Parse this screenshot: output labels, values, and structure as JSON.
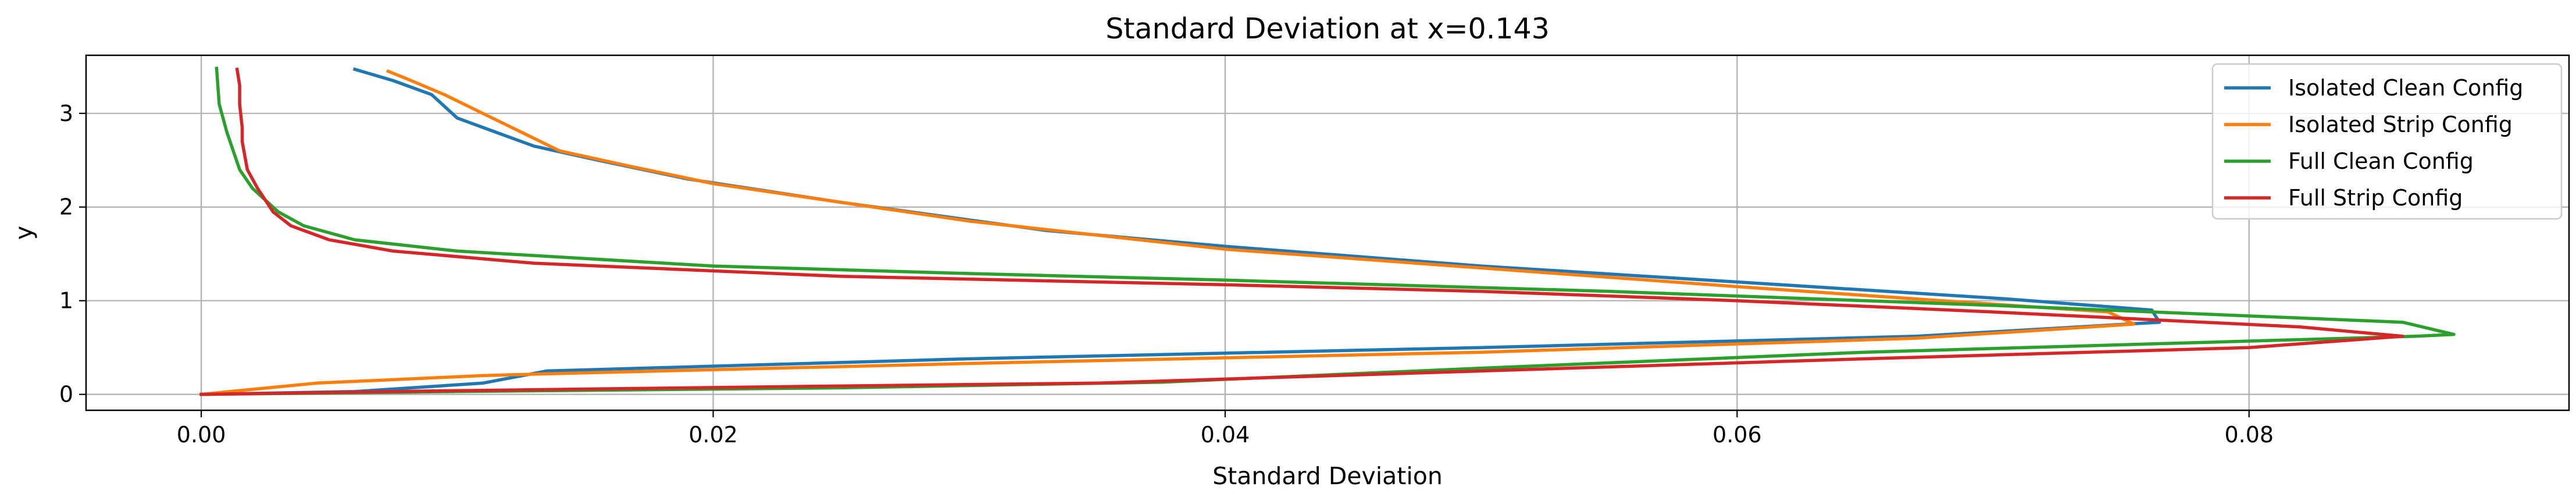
{
  "chart_data": {
    "type": "line",
    "title": "Standard Deviation at x=0.143",
    "xlabel": "Standard Deviation",
    "ylabel": "y",
    "xlim": [
      -0.0045,
      0.0925
    ],
    "ylim": [
      -0.17,
      3.62
    ],
    "xticks": [
      0.0,
      0.02,
      0.04,
      0.06,
      0.08
    ],
    "xtick_labels": [
      "0.00",
      "0.02",
      "0.04",
      "0.06",
      "0.08"
    ],
    "yticks": [
      0,
      1,
      2,
      3
    ],
    "ytick_labels": [
      "0",
      "1",
      "2",
      "3"
    ],
    "grid": true,
    "legend_position": "top-right",
    "series": [
      {
        "name": "Isolated Clean Config",
        "color": "#1f77b4",
        "points": [
          [
            0.0,
            0.0
          ],
          [
            0.006,
            0.03
          ],
          [
            0.011,
            0.12
          ],
          [
            0.0135,
            0.25
          ],
          [
            0.03,
            0.38
          ],
          [
            0.05,
            0.5
          ],
          [
            0.067,
            0.62
          ],
          [
            0.0765,
            0.77
          ],
          [
            0.0762,
            0.9
          ],
          [
            0.0705,
            1.02
          ],
          [
            0.06,
            1.2
          ],
          [
            0.05,
            1.37
          ],
          [
            0.04,
            1.58
          ],
          [
            0.033,
            1.75
          ],
          [
            0.025,
            2.05
          ],
          [
            0.019,
            2.3
          ],
          [
            0.0155,
            2.5
          ],
          [
            0.013,
            2.65
          ],
          [
            0.0115,
            2.8
          ],
          [
            0.01,
            2.95
          ],
          [
            0.009,
            3.2
          ],
          [
            0.0075,
            3.35
          ],
          [
            0.006,
            3.47
          ]
        ]
      },
      {
        "name": "Isolated Strip Config",
        "color": "#ff7f0e",
        "points": [
          [
            0.0,
            0.0
          ],
          [
            0.0045,
            0.12
          ],
          [
            0.011,
            0.2
          ],
          [
            0.0135,
            0.22
          ],
          [
            0.03,
            0.33
          ],
          [
            0.05,
            0.45
          ],
          [
            0.067,
            0.6
          ],
          [
            0.0755,
            0.75
          ],
          [
            0.0745,
            0.88
          ],
          [
            0.068,
            1.0
          ],
          [
            0.06,
            1.15
          ],
          [
            0.05,
            1.35
          ],
          [
            0.04,
            1.55
          ],
          [
            0.03,
            1.85
          ],
          [
            0.02,
            2.25
          ],
          [
            0.0165,
            2.45
          ],
          [
            0.014,
            2.6
          ],
          [
            0.0125,
            2.8
          ],
          [
            0.011,
            3.0
          ],
          [
            0.0095,
            3.2
          ],
          [
            0.0082,
            3.35
          ],
          [
            0.0073,
            3.45
          ]
        ]
      },
      {
        "name": "Full Clean Config",
        "color": "#2ca02c",
        "points": [
          [
            0.0,
            0.0
          ],
          [
            0.01,
            0.03
          ],
          [
            0.025,
            0.07
          ],
          [
            0.0375,
            0.13
          ],
          [
            0.05,
            0.28
          ],
          [
            0.065,
            0.45
          ],
          [
            0.0865,
            0.62
          ],
          [
            0.088,
            0.64
          ],
          [
            0.086,
            0.77
          ],
          [
            0.07,
            0.95
          ],
          [
            0.055,
            1.1
          ],
          [
            0.04,
            1.22
          ],
          [
            0.03,
            1.29
          ],
          [
            0.02,
            1.37
          ],
          [
            0.01,
            1.53
          ],
          [
            0.006,
            1.65
          ],
          [
            0.004,
            1.8
          ],
          [
            0.003,
            1.95
          ],
          [
            0.002,
            2.2
          ],
          [
            0.0015,
            2.4
          ],
          [
            0.001,
            2.8
          ],
          [
            0.0007,
            3.1
          ],
          [
            0.0006,
            3.48
          ]
        ]
      },
      {
        "name": "Full Strip Config",
        "color": "#d62728",
        "points": [
          [
            0.0,
            0.0
          ],
          [
            0.01,
            0.04
          ],
          [
            0.025,
            0.09
          ],
          [
            0.035,
            0.12
          ],
          [
            0.05,
            0.25
          ],
          [
            0.065,
            0.38
          ],
          [
            0.08,
            0.5
          ],
          [
            0.086,
            0.62
          ],
          [
            0.082,
            0.72
          ],
          [
            0.07,
            0.88
          ],
          [
            0.06,
            1.0
          ],
          [
            0.05,
            1.1
          ],
          [
            0.04,
            1.17
          ],
          [
            0.025,
            1.26
          ],
          [
            0.013,
            1.4
          ],
          [
            0.0075,
            1.53
          ],
          [
            0.005,
            1.65
          ],
          [
            0.0035,
            1.8
          ],
          [
            0.0028,
            1.95
          ],
          [
            0.0022,
            2.2
          ],
          [
            0.0018,
            2.4
          ],
          [
            0.0016,
            2.7
          ],
          [
            0.0016,
            2.85
          ],
          [
            0.0015,
            3.1
          ],
          [
            0.0015,
            3.3
          ],
          [
            0.0014,
            3.47
          ]
        ]
      }
    ]
  }
}
